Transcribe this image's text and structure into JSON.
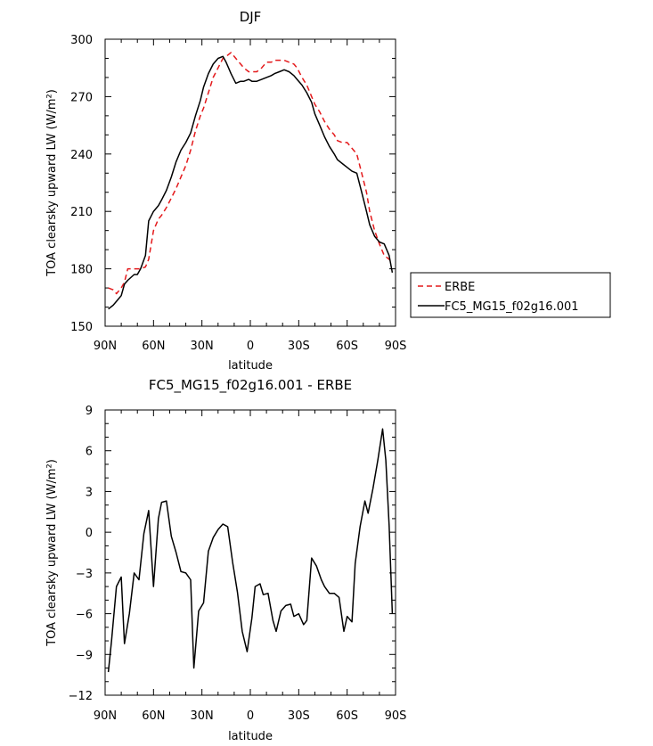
{
  "chart_data": [
    {
      "type": "line",
      "title": "DJF",
      "xlabel": "latitude",
      "ylabel": "TOA clearsky upward LW (W/m²)",
      "xlim": [
        90,
        -90
      ],
      "ylim": [
        150,
        300
      ],
      "xticks": [
        90,
        60,
        30,
        0,
        -30,
        -60,
        -90
      ],
      "xtick_labels": [
        "90N",
        "60N",
        "30N",
        "0",
        "30S",
        "60S",
        "90S"
      ],
      "yticks": [
        150,
        180,
        210,
        240,
        270,
        300
      ],
      "ytick_labels": [
        "150",
        "180",
        "210",
        "240",
        "270",
        "300"
      ],
      "legend_position": "right",
      "series": [
        {
          "name": "ERBE",
          "color": "#e41a1c",
          "dash": "dashed",
          "x": [
            88,
            85,
            83,
            80,
            78,
            76,
            72,
            70,
            68,
            65,
            63,
            60,
            57,
            55,
            52,
            49,
            46,
            43,
            40,
            37,
            34,
            31,
            29,
            26,
            23,
            20,
            17,
            15,
            12,
            9,
            6,
            4,
            1,
            -1,
            -4,
            -7,
            -10,
            -13,
            -15,
            -18,
            -21,
            -24,
            -27,
            -29,
            -32,
            -35,
            -38,
            -40,
            -43,
            -46,
            -49,
            -52,
            -54,
            -57,
            -60,
            -63,
            -66,
            -69,
            -72,
            -74,
            -77,
            -80,
            -83,
            -86,
            -88
          ],
          "y": [
            170,
            169,
            167,
            170,
            173,
            180,
            180,
            180,
            180,
            181,
            185,
            200,
            206,
            208,
            212,
            217,
            222,
            228,
            234,
            242,
            252,
            260,
            264,
            272,
            280,
            285,
            290,
            291,
            293,
            290,
            287,
            285,
            283,
            283,
            283,
            285,
            288,
            288,
            289,
            289,
            289,
            288,
            287,
            285,
            280,
            276,
            270,
            266,
            262,
            257,
            253,
            250,
            247,
            246,
            246,
            243,
            240,
            230,
            220,
            210,
            200,
            193,
            187,
            185,
            183
          ]
        },
        {
          "name": "FC5_MG15_f02g16.001",
          "color": "#000000",
          "dash": "solid",
          "x": [
            88,
            85,
            83,
            80,
            78,
            76,
            72,
            70,
            68,
            65,
            63,
            60,
            57,
            55,
            52,
            49,
            46,
            43,
            40,
            37,
            34,
            31,
            29,
            26,
            23,
            20,
            17,
            15,
            12,
            9,
            6,
            4,
            1,
            -1,
            -4,
            -7,
            -10,
            -13,
            -15,
            -18,
            -21,
            -24,
            -27,
            -29,
            -32,
            -35,
            -38,
            -40,
            -43,
            -46,
            -49,
            -52,
            -54,
            -57,
            -60,
            -63,
            -66,
            -69,
            -72,
            -74,
            -77,
            -80,
            -83,
            -86,
            -88
          ],
          "y": [
            159,
            161,
            163,
            166,
            172,
            174,
            177,
            177,
            180,
            187,
            205,
            210,
            213,
            216,
            221,
            228,
            236,
            242,
            246,
            251,
            260,
            268,
            275,
            282,
            287,
            290,
            291,
            288,
            282,
            277,
            278,
            278,
            279,
            278,
            278,
            279,
            280,
            281,
            282,
            283,
            284,
            283,
            281,
            279,
            276,
            272,
            267,
            261,
            255,
            249,
            244,
            240,
            237,
            235,
            233,
            231,
            230,
            220,
            210,
            203,
            197,
            194,
            193,
            187,
            178
          ]
        }
      ]
    },
    {
      "type": "line",
      "title": "FC5_MG15_f02g16.001 - ERBE",
      "xlabel": "latitude",
      "ylabel": "TOA clearsky upward LW (W/m²)",
      "xlim": [
        90,
        -90
      ],
      "ylim": [
        -12,
        9
      ],
      "xticks": [
        90,
        60,
        30,
        0,
        -30,
        -60,
        -90
      ],
      "xtick_labels": [
        "90N",
        "60N",
        "30N",
        "0",
        "30S",
        "60S",
        "90S"
      ],
      "yticks": [
        -12,
        -9,
        -6,
        -3,
        0,
        3,
        6,
        9
      ],
      "ytick_labels": [
        "−12",
        "−9",
        "−6",
        "−3",
        "0",
        "3",
        "6",
        "9"
      ],
      "series": [
        {
          "name": "FC5_MG15_f02g16.001 - ERBE",
          "color": "#000000",
          "dash": "solid",
          "x": [
            88,
            86,
            83,
            80,
            78,
            75,
            72,
            69,
            66,
            63,
            60,
            57,
            55,
            52,
            49,
            46,
            43,
            40,
            37,
            35,
            32,
            29,
            26,
            23,
            20,
            17,
            14,
            11,
            8,
            5,
            2,
            -1,
            -3,
            -6,
            -8,
            -11,
            -14,
            -16,
            -19,
            -22,
            -25,
            -27,
            -30,
            -33,
            -35,
            -38,
            -41,
            -44,
            -46,
            -49,
            -52,
            -55,
            -58,
            -60,
            -63,
            -65,
            -68,
            -71,
            -73,
            -76,
            -79,
            -82,
            -84,
            -86,
            -88
          ],
          "y": [
            -10.3,
            -8,
            -4,
            -3.3,
            -8.2,
            -6,
            -3,
            -3.5,
            -0.1,
            1.6,
            -4,
            1,
            2.2,
            2.3,
            -0.3,
            -1.5,
            -2.9,
            -3,
            -3.5,
            -10,
            -5.8,
            -5.2,
            -1.4,
            -0.4,
            0.2,
            0.6,
            0.4,
            -2.2,
            -4.4,
            -7.3,
            -8.8,
            -6.3,
            -4,
            -3.8,
            -4.6,
            -4.5,
            -6.5,
            -7.3,
            -5.8,
            -5.4,
            -5.3,
            -6.2,
            -6,
            -6.8,
            -6.5,
            -1.9,
            -2.5,
            -3.5,
            -4,
            -4.5,
            -4.5,
            -4.8,
            -7.3,
            -6.2,
            -6.6,
            -2.3,
            0.4,
            2.3,
            1.4,
            3.2,
            5.3,
            7.6,
            5.3,
            0.5,
            -6
          ]
        }
      ]
    }
  ]
}
